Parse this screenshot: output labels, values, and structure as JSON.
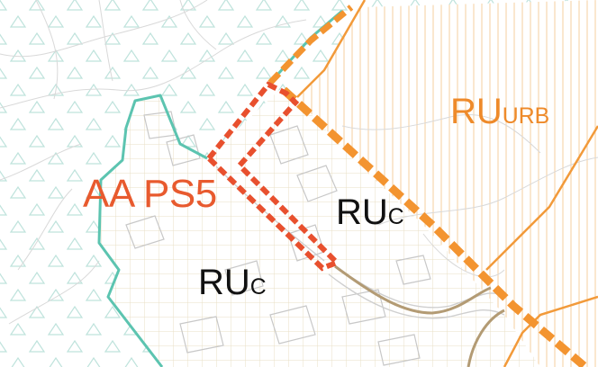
{
  "labels": {
    "action_area": {
      "text": "AA PS5",
      "color": "#e85a2e"
    },
    "urban_zone": {
      "main": "RU",
      "sub": "URB",
      "color": "#ee8a2a"
    },
    "consolidated_zone_east": {
      "main": "RU",
      "sub": "C",
      "color": "#111111"
    },
    "consolidated_zone_west": {
      "main": "RU",
      "sub": "C",
      "color": "#111111"
    }
  },
  "colors": {
    "rural_triangle_hatch": "#bfe3dc",
    "rural_boundary": "#5cc4b0",
    "urban_hatch": "#f4c48a",
    "urban_boundary": "#f29a3a",
    "consolidated_grid": "#e7dcc0",
    "consolidated_boundary": "#b39b74",
    "action_area_outline": "#e8502e",
    "dashed_boundary": "#f39430",
    "building_outline": "#c8c8c8",
    "contour_line": "#d9d9d9"
  },
  "legend_icons": [
    "triangle-hatch-icon"
  ]
}
